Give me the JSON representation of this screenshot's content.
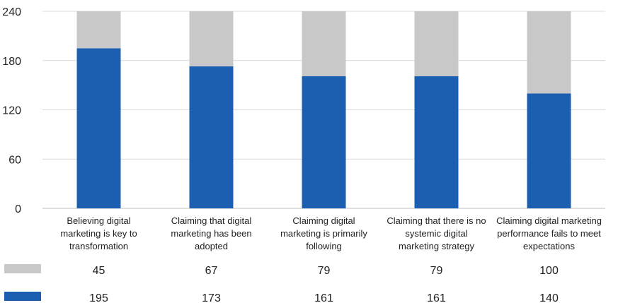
{
  "chart_data": {
    "type": "bar",
    "stacked": true,
    "categories": [
      [
        "Believing digital",
        "marketing is key to",
        "transformation"
      ],
      [
        "Claiming that digital",
        "marketing has been",
        "adopted"
      ],
      [
        "Claiming digital",
        "marketing is primarily",
        "following"
      ],
      [
        "Claiming that there is no",
        "systemic digital",
        "marketing strategy"
      ],
      [
        "Claiming digital marketing",
        "performance fails to meet",
        "expectations"
      ]
    ],
    "series": [
      {
        "values": [
          195,
          173,
          161,
          161,
          140
        ],
        "color": "#1c5fb0"
      },
      {
        "values": [
          45,
          67,
          79,
          79,
          100
        ],
        "color": "#c8c8c8"
      }
    ],
    "ylim": [
      0,
      240
    ],
    "yticks": [
      "0",
      "60",
      "120",
      "180",
      "240"
    ],
    "grid": true,
    "data_table_below": true
  }
}
